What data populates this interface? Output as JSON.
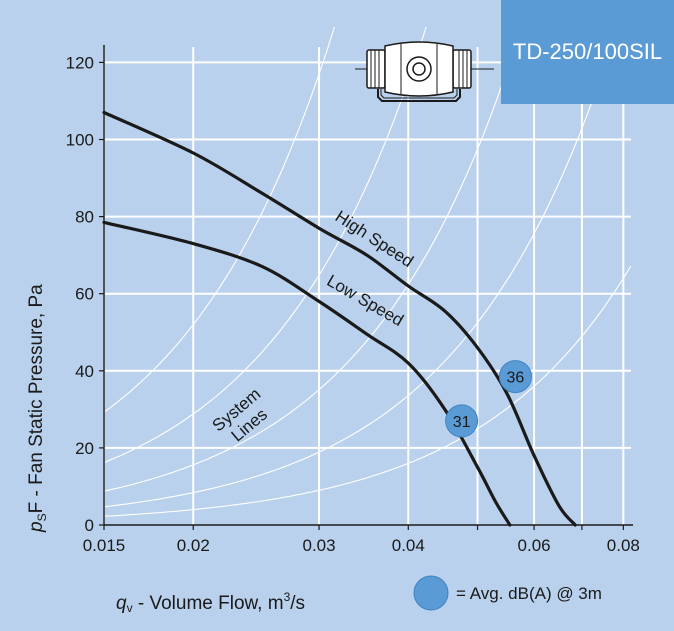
{
  "model_label": "TD-250/100SIL",
  "chart_data": {
    "type": "line",
    "title": "",
    "xlabel": {
      "symbol": "q",
      "subscript": "v",
      "text": " - Volume Flow, m",
      "superscript": "3",
      "suffix": "/s"
    },
    "ylabel": {
      "symbol": "p",
      "subscript": "S",
      "text": "F - Fan Static Pressure, Pa"
    },
    "x_scale": "log",
    "xlim": [
      0.015,
      0.082
    ],
    "ylim": [
      0,
      124
    ],
    "x_ticks": [
      {
        "value": 0.015,
        "label": "0.015"
      },
      {
        "value": 0.02,
        "label": "0.02"
      },
      {
        "value": 0.03,
        "label": "0.03"
      },
      {
        "value": 0.04,
        "label": "0.04"
      },
      {
        "value": 0.06,
        "label": "0.06"
      },
      {
        "value": 0.08,
        "label": "0.08"
      }
    ],
    "x_gridlines": [
      0.015,
      0.02,
      0.03,
      0.04,
      0.05,
      0.06,
      0.07,
      0.08
    ],
    "y_ticks": [
      0,
      20,
      40,
      60,
      80,
      100,
      120
    ],
    "grid": true,
    "series": [
      {
        "name": "High Speed",
        "x": [
          0.015,
          0.02,
          0.025,
          0.03,
          0.035,
          0.04,
          0.045,
          0.05,
          0.055,
          0.06,
          0.065,
          0.0685
        ],
        "y": [
          107,
          96.5,
          86,
          77,
          70,
          62,
          55.5,
          46,
          34,
          18,
          5,
          0
        ]
      },
      {
        "name": "Low Speed",
        "x": [
          0.015,
          0.02,
          0.025,
          0.03,
          0.035,
          0.04,
          0.045,
          0.05,
          0.053,
          0.0555
        ],
        "y": [
          78.5,
          73,
          67,
          58,
          49.5,
          42,
          30,
          15,
          6,
          0
        ]
      }
    ],
    "system_lines_label": [
      "System",
      "Lines"
    ],
    "system_lines_k": [
      130000,
      72000,
      39000,
      21000,
      10000
    ],
    "operating_points": [
      {
        "x": 0.0475,
        "y": 27,
        "label": "31"
      },
      {
        "x": 0.0565,
        "y": 38.5,
        "label": "36"
      }
    ],
    "legend_note": "= Avg. dB(A) @ 3m",
    "colors": {
      "background": "#b9d1ec",
      "grid": "#ffffff",
      "curve": "#1a1a1a",
      "marker": "#5b9bd5",
      "model_box": "#5b9bd5"
    }
  }
}
